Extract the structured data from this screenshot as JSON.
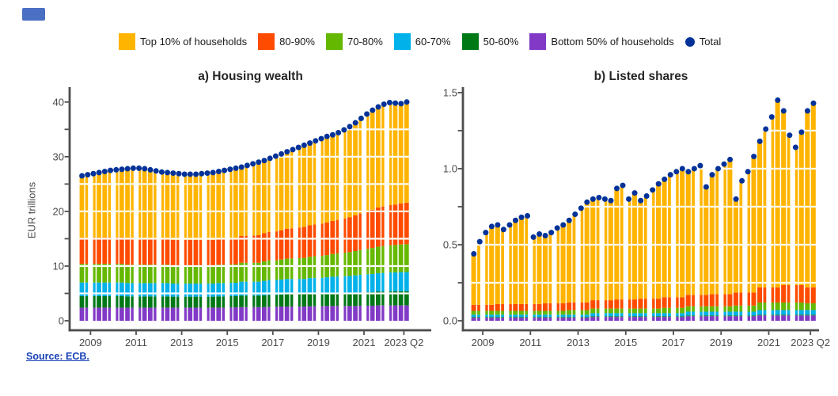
{
  "header": {
    "badge_color": "#4a6fc3"
  },
  "legend": {
    "items": [
      {
        "label": "Top 10% of households",
        "color": "#FFB400",
        "marker": "square"
      },
      {
        "label": "80-90%",
        "color": "#FF4B00",
        "marker": "square"
      },
      {
        "label": "70-80%",
        "color": "#65B800",
        "marker": "square"
      },
      {
        "label": "60-70%",
        "color": "#00B1EA",
        "marker": "square"
      },
      {
        "label": "50-60%",
        "color": "#007816",
        "marker": "square"
      },
      {
        "label": "Bottom 50% of households",
        "color": "#8139C6",
        "marker": "square"
      },
      {
        "label": "Total",
        "color": "#003299",
        "marker": "dot"
      }
    ]
  },
  "source": {
    "text": "Source: ECB."
  },
  "chart_data": [
    {
      "type": "bar",
      "stacked": true,
      "title": "a) Housing wealth",
      "ylabel": "EUR trillions",
      "frequency": "quarterly",
      "x_start": "2009Q1",
      "x_end": "2023Q2",
      "ylim": [
        0,
        42
      ],
      "grid_interval": 5,
      "grid": "white overlay on bars",
      "legend_position": "top",
      "x_ticks": [
        {
          "i": 2,
          "label": "2009"
        },
        {
          "i": 10,
          "label": "2011"
        },
        {
          "i": 18,
          "label": "2013"
        },
        {
          "i": 26,
          "label": "2015"
        },
        {
          "i": 34,
          "label": "2017"
        },
        {
          "i": 42,
          "label": "2019"
        },
        {
          "i": 50,
          "label": "2021"
        },
        {
          "i": 57,
          "label": "2023 Q2"
        }
      ],
      "y_ticks": [
        {
          "v": 0,
          "label": "0"
        },
        {
          "v": 10,
          "label": "10"
        },
        {
          "v": 20,
          "label": "20"
        },
        {
          "v": 30,
          "label": "30"
        },
        {
          "v": 40,
          "label": "40"
        }
      ],
      "series": [
        {
          "name": "Top 10% of households",
          "color": "#FFB400",
          "values": [
            11.3,
            11.5,
            11.7,
            11.9,
            12.05,
            12.25,
            12.35,
            12.45,
            12.7,
            12.8,
            12.8,
            12.7,
            12.55,
            12.35,
            12.15,
            12.05,
            12.2,
            12.1,
            12.0,
            12.0,
            12.0,
            12.1,
            12.2,
            12.3,
            12.25,
            12.45,
            12.6,
            12.8,
            12.6,
            12.85,
            13.1,
            13.35,
            13.3,
            13.45,
            13.75,
            13.95,
            14.1,
            14.4,
            14.65,
            14.95,
            15.05,
            15.3,
            15.55,
            15.75,
            15.75,
            15.95,
            16.2,
            16.55,
            16.9,
            17.35,
            17.8,
            18.2,
            18.4,
            18.7,
            18.75,
            18.55,
            18.25,
            18.4
          ]
        },
        {
          "name": "80-90%",
          "color": "#FF4B00",
          "values": [
            4.8,
            4.8,
            4.8,
            4.8,
            4.85,
            4.85,
            4.85,
            4.85,
            4.85,
            4.85,
            4.85,
            4.85,
            4.8,
            4.8,
            4.8,
            4.8,
            4.7,
            4.7,
            4.7,
            4.7,
            4.7,
            4.7,
            4.7,
            4.7,
            4.8,
            4.8,
            4.8,
            4.8,
            4.9,
            4.95,
            5.0,
            5.05,
            5.15,
            5.2,
            5.3,
            5.35,
            5.45,
            5.5,
            5.6,
            5.65,
            5.75,
            5.8,
            5.9,
            5.95,
            6.05,
            6.15,
            6.25,
            6.4,
            6.55,
            6.7,
            6.85,
            7.0,
            7.15,
            7.25,
            7.35,
            7.4,
            7.5,
            7.6
          ]
        },
        {
          "name": "70-80%",
          "color": "#65B800",
          "values": [
            3.4,
            3.4,
            3.4,
            3.4,
            3.4,
            3.4,
            3.4,
            3.4,
            3.35,
            3.35,
            3.35,
            3.35,
            3.35,
            3.35,
            3.35,
            3.35,
            3.3,
            3.3,
            3.3,
            3.3,
            3.3,
            3.3,
            3.3,
            3.3,
            3.35,
            3.35,
            3.35,
            3.35,
            3.45,
            3.45,
            3.45,
            3.45,
            3.55,
            3.6,
            3.6,
            3.65,
            3.7,
            3.75,
            3.8,
            3.85,
            3.9,
            3.95,
            4.0,
            4.05,
            4.15,
            4.2,
            4.3,
            4.35,
            4.45,
            4.55,
            4.65,
            4.75,
            4.85,
            4.9,
            4.95,
            5.0,
            5.05,
            5.1
          ]
        },
        {
          "name": "60-70%",
          "color": "#00B1EA",
          "values": [
            2.5,
            2.5,
            2.5,
            2.5,
            2.5,
            2.5,
            2.5,
            2.5,
            2.45,
            2.45,
            2.45,
            2.45,
            2.45,
            2.45,
            2.45,
            2.45,
            2.4,
            2.4,
            2.4,
            2.4,
            2.4,
            2.4,
            2.4,
            2.4,
            2.45,
            2.45,
            2.45,
            2.45,
            2.55,
            2.55,
            2.55,
            2.55,
            2.65,
            2.7,
            2.7,
            2.75,
            2.8,
            2.8,
            2.8,
            2.8,
            2.85,
            2.9,
            2.9,
            2.95,
            3.0,
            3.0,
            3.05,
            3.1,
            3.15,
            3.2,
            3.25,
            3.3,
            3.35,
            3.4,
            3.45,
            3.45,
            3.5,
            3.5
          ]
        },
        {
          "name": "50-60%",
          "color": "#007816",
          "values": [
            2.1,
            2.1,
            2.1,
            2.1,
            2.1,
            2.1,
            2.1,
            2.1,
            2.05,
            2.05,
            2.05,
            2.05,
            2.05,
            2.05,
            2.05,
            2.05,
            2.0,
            2.0,
            2.0,
            2.0,
            2.0,
            2.0,
            2.0,
            2.0,
            2.05,
            2.05,
            2.05,
            2.05,
            2.1,
            2.1,
            2.1,
            2.1,
            2.15,
            2.2,
            2.2,
            2.2,
            2.25,
            2.25,
            2.25,
            2.25,
            2.3,
            2.3,
            2.3,
            2.3,
            2.35,
            2.4,
            2.4,
            2.4,
            2.45,
            2.45,
            2.5,
            2.5,
            2.55,
            2.55,
            2.6,
            2.6,
            2.6,
            2.6
          ]
        },
        {
          "name": "Bottom 50% of households",
          "color": "#8139C6",
          "values": [
            2.4,
            2.4,
            2.4,
            2.4,
            2.4,
            2.4,
            2.4,
            2.4,
            2.4,
            2.4,
            2.4,
            2.4,
            2.4,
            2.4,
            2.4,
            2.4,
            2.4,
            2.4,
            2.4,
            2.4,
            2.4,
            2.4,
            2.4,
            2.4,
            2.4,
            2.4,
            2.45,
            2.45,
            2.5,
            2.5,
            2.5,
            2.5,
            2.5,
            2.55,
            2.55,
            2.6,
            2.6,
            2.6,
            2.6,
            2.6,
            2.65,
            2.65,
            2.65,
            2.7,
            2.7,
            2.7,
            2.7,
            2.7,
            2.7,
            2.75,
            2.75,
            2.75,
            2.8,
            2.8,
            2.8,
            2.8,
            2.8,
            2.8
          ]
        }
      ],
      "total": {
        "name": "Total",
        "color": "#003299",
        "values": [
          26.5,
          26.7,
          26.9,
          27.1,
          27.3,
          27.5,
          27.6,
          27.7,
          27.8,
          27.9,
          27.9,
          27.8,
          27.6,
          27.4,
          27.2,
          27.1,
          27.0,
          26.9,
          26.8,
          26.8,
          26.8,
          26.9,
          27.0,
          27.1,
          27.3,
          27.5,
          27.7,
          27.9,
          28.1,
          28.4,
          28.7,
          29.0,
          29.3,
          29.7,
          30.1,
          30.5,
          30.9,
          31.3,
          31.7,
          32.1,
          32.5,
          32.9,
          33.3,
          33.7,
          34.0,
          34.4,
          34.9,
          35.5,
          36.2,
          37.0,
          37.8,
          38.5,
          39.1,
          39.6,
          39.9,
          39.8,
          39.7,
          40.0
        ]
      }
    },
    {
      "type": "bar",
      "stacked": true,
      "title": "b) Listed shares",
      "ylabel": "",
      "frequency": "quarterly",
      "x_start": "2009Q1",
      "x_end": "2023Q2",
      "ylim": [
        0,
        1.51
      ],
      "grid_interval": 0.25,
      "grid": "white overlay on bars",
      "legend_position": "top",
      "x_ticks": [
        {
          "i": 2,
          "label": "2009"
        },
        {
          "i": 10,
          "label": "2011"
        },
        {
          "i": 18,
          "label": "2013"
        },
        {
          "i": 26,
          "label": "2015"
        },
        {
          "i": 34,
          "label": "2017"
        },
        {
          "i": 42,
          "label": "2019"
        },
        {
          "i": 50,
          "label": "2021"
        },
        {
          "i": 57,
          "label": "2023 Q2"
        }
      ],
      "y_ticks": [
        {
          "v": 0,
          "label": "0.0"
        },
        {
          "v": 0.5,
          "label": "0.5"
        },
        {
          "v": 1.0,
          "label": "1.0"
        },
        {
          "v": 1.5,
          "label": "1.5"
        }
      ],
      "series": [
        {
          "name": "Top 10% of households",
          "color": "#FFB400",
          "values": [
            0.335,
            0.415,
            0.475,
            0.515,
            0.52,
            0.49,
            0.52,
            0.55,
            0.57,
            0.58,
            0.44,
            0.46,
            0.445,
            0.465,
            0.495,
            0.515,
            0.54,
            0.58,
            0.62,
            0.66,
            0.665,
            0.675,
            0.665,
            0.655,
            0.73,
            0.75,
            0.66,
            0.7,
            0.645,
            0.675,
            0.715,
            0.755,
            0.775,
            0.805,
            0.825,
            0.845,
            0.81,
            0.83,
            0.85,
            0.71,
            0.785,
            0.825,
            0.855,
            0.885,
            0.615,
            0.735,
            0.795,
            0.895,
            0.96,
            1.04,
            1.12,
            1.23,
            1.145,
            0.985,
            0.905,
            1.005,
            1.16,
            1.21
          ]
        },
        {
          "name": "80-90%",
          "color": "#FF4B00",
          "values": [
            0.04,
            0.04,
            0.04,
            0.04,
            0.045,
            0.045,
            0.045,
            0.045,
            0.045,
            0.045,
            0.045,
            0.045,
            0.05,
            0.05,
            0.05,
            0.05,
            0.05,
            0.05,
            0.05,
            0.05,
            0.055,
            0.055,
            0.055,
            0.055,
            0.06,
            0.06,
            0.06,
            0.06,
            0.065,
            0.065,
            0.065,
            0.065,
            0.07,
            0.07,
            0.07,
            0.07,
            0.075,
            0.075,
            0.075,
            0.075,
            0.08,
            0.08,
            0.08,
            0.08,
            0.085,
            0.085,
            0.085,
            0.085,
            0.1,
            0.1,
            0.1,
            0.1,
            0.115,
            0.115,
            0.115,
            0.115,
            0.105,
            0.105
          ]
        },
        {
          "name": "70-80%",
          "color": "#65B800",
          "values": [
            0.025,
            0.025,
            0.025,
            0.025,
            0.025,
            0.025,
            0.025,
            0.025,
            0.025,
            0.025,
            0.025,
            0.025,
            0.025,
            0.025,
            0.025,
            0.025,
            0.03,
            0.03,
            0.03,
            0.03,
            0.03,
            0.03,
            0.03,
            0.03,
            0.03,
            0.03,
            0.03,
            0.03,
            0.03,
            0.03,
            0.03,
            0.03,
            0.035,
            0.035,
            0.035,
            0.035,
            0.035,
            0.035,
            0.035,
            0.035,
            0.035,
            0.035,
            0.035,
            0.035,
            0.04,
            0.04,
            0.04,
            0.04,
            0.05,
            0.05,
            0.05,
            0.05,
            0.05,
            0.05,
            0.05,
            0.05,
            0.045,
            0.045
          ]
        },
        {
          "name": "60-70%",
          "color": "#00B1EA",
          "values": [
            0.015,
            0.015,
            0.015,
            0.015,
            0.015,
            0.015,
            0.015,
            0.015,
            0.015,
            0.015,
            0.015,
            0.015,
            0.015,
            0.015,
            0.015,
            0.015,
            0.015,
            0.015,
            0.015,
            0.015,
            0.02,
            0.02,
            0.02,
            0.02,
            0.02,
            0.02,
            0.02,
            0.02,
            0.02,
            0.02,
            0.02,
            0.02,
            0.02,
            0.02,
            0.02,
            0.02,
            0.025,
            0.025,
            0.025,
            0.025,
            0.025,
            0.025,
            0.025,
            0.025,
            0.025,
            0.025,
            0.025,
            0.025,
            0.03,
            0.03,
            0.03,
            0.03,
            0.03,
            0.03,
            0.03,
            0.03,
            0.03,
            0.03
          ]
        },
        {
          "name": "50-60%",
          "color": "#007816",
          "values": [
            0.005,
            0.005,
            0.005,
            0.005,
            0.005,
            0.005,
            0.005,
            0.005,
            0.005,
            0.005,
            0.005,
            0.005,
            0.005,
            0.005,
            0.005,
            0.005,
            0.005,
            0.005,
            0.005,
            0.005,
            0.005,
            0.005,
            0.005,
            0.005,
            0.005,
            0.005,
            0.005,
            0.005,
            0.005,
            0.005,
            0.005,
            0.005,
            0.005,
            0.005,
            0.005,
            0.005,
            0.005,
            0.005,
            0.005,
            0.005,
            0.005,
            0.005,
            0.005,
            0.005,
            0.005,
            0.005,
            0.005,
            0.005,
            0.005,
            0.005,
            0.005,
            0.005,
            0.005,
            0.005,
            0.005,
            0.005,
            0.005,
            0.005
          ]
        },
        {
          "name": "Bottom 50% of households",
          "color": "#8139C6",
          "values": [
            0.02,
            0.02,
            0.02,
            0.02,
            0.02,
            0.02,
            0.02,
            0.02,
            0.02,
            0.02,
            0.02,
            0.02,
            0.02,
            0.02,
            0.02,
            0.02,
            0.02,
            0.02,
            0.02,
            0.02,
            0.025,
            0.025,
            0.025,
            0.025,
            0.025,
            0.025,
            0.025,
            0.025,
            0.025,
            0.025,
            0.025,
            0.025,
            0.025,
            0.025,
            0.025,
            0.025,
            0.03,
            0.03,
            0.03,
            0.03,
            0.03,
            0.03,
            0.03,
            0.03,
            0.03,
            0.03,
            0.03,
            0.03,
            0.035,
            0.035,
            0.035,
            0.035,
            0.035,
            0.035,
            0.035,
            0.035,
            0.035,
            0.035
          ]
        }
      ],
      "total": {
        "name": "Total",
        "color": "#003299",
        "values": [
          0.44,
          0.52,
          0.58,
          0.62,
          0.63,
          0.6,
          0.63,
          0.66,
          0.68,
          0.69,
          0.55,
          0.57,
          0.56,
          0.58,
          0.61,
          0.63,
          0.66,
          0.7,
          0.74,
          0.78,
          0.8,
          0.81,
          0.8,
          0.79,
          0.87,
          0.89,
          0.8,
          0.84,
          0.79,
          0.82,
          0.86,
          0.9,
          0.93,
          0.96,
          0.98,
          1.0,
          0.98,
          1.0,
          1.02,
          0.88,
          0.96,
          1.0,
          1.03,
          1.06,
          0.8,
          0.92,
          0.98,
          1.08,
          1.18,
          1.26,
          1.34,
          1.45,
          1.38,
          1.22,
          1.14,
          1.24,
          1.38,
          1.43
        ]
      }
    }
  ]
}
